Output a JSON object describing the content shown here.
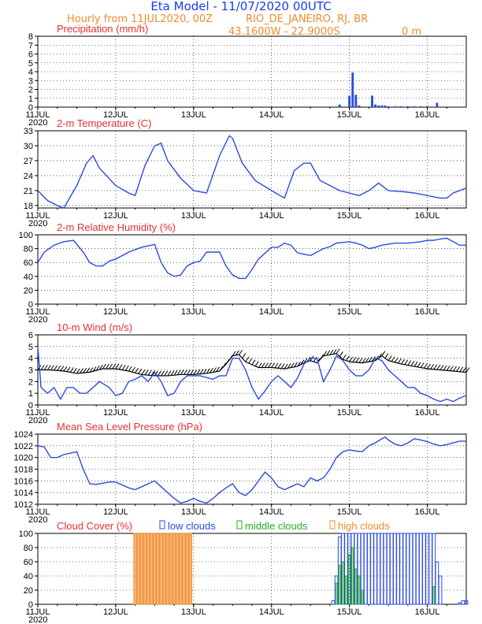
{
  "header": {
    "title": "Eta Model - 11/07/2020 00UTC",
    "subtitle": "Hourly from 11JUL2020, 00Z",
    "location": "RIO_DE_JANEIRO, RJ, BR",
    "coords": "43.1600W - 22.9000S",
    "elevation": "0 m",
    "title_color": "#1a3cf0",
    "subtitle_color": "#f08c28"
  },
  "x_axis": {
    "hours_total": 132,
    "tick_labels": [
      "11JUL",
      "12JUL",
      "13JUL",
      "14JUL",
      "15JUL",
      "16JUL"
    ],
    "year_label": "2020"
  },
  "chart_data": [
    {
      "type": "bar",
      "panel": "precip",
      "title": "Precipitation (mm/h)",
      "ylim": [
        0,
        8
      ],
      "yticks": [
        0,
        1,
        2,
        3,
        4,
        5,
        6,
        7,
        8
      ],
      "bars": [
        [
          93,
          0.3
        ],
        [
          96,
          1.3
        ],
        [
          97,
          3.9
        ],
        [
          98,
          1.4
        ],
        [
          99,
          0.2
        ],
        [
          103,
          1.3
        ],
        [
          104,
          0.3
        ],
        [
          105,
          0.2
        ],
        [
          106,
          0.2
        ],
        [
          107,
          0.2
        ],
        [
          108,
          0.1
        ],
        [
          110,
          0.1
        ],
        [
          112,
          0.1
        ],
        [
          114,
          0.1
        ],
        [
          116,
          0.1
        ],
        [
          118,
          0.1
        ],
        [
          120,
          0.1
        ],
        [
          123,
          0.5
        ]
      ]
    },
    {
      "type": "line",
      "panel": "temp",
      "title": "2-m Temperature (C)",
      "ylim": [
        17.5,
        33
      ],
      "yticks": [
        18,
        21,
        24,
        27,
        30,
        33
      ],
      "points": [
        [
          0,
          21
        ],
        [
          3,
          19
        ],
        [
          6,
          18
        ],
        [
          8,
          17.5
        ],
        [
          12,
          22
        ],
        [
          15,
          26.5
        ],
        [
          17,
          28
        ],
        [
          19,
          25.5
        ],
        [
          24,
          22
        ],
        [
          28,
          20.5
        ],
        [
          30,
          20
        ],
        [
          33,
          26
        ],
        [
          36,
          30
        ],
        [
          38,
          30.5
        ],
        [
          40,
          27
        ],
        [
          44,
          23.5
        ],
        [
          48,
          21
        ],
        [
          52,
          20.5
        ],
        [
          56,
          28
        ],
        [
          59,
          32
        ],
        [
          60,
          31.5
        ],
        [
          63,
          26.5
        ],
        [
          67,
          23
        ],
        [
          72,
          21
        ],
        [
          76,
          19.5
        ],
        [
          79,
          25
        ],
        [
          82,
          26.5
        ],
        [
          84,
          26.5
        ],
        [
          87,
          23
        ],
        [
          90,
          22
        ],
        [
          93,
          21
        ],
        [
          96,
          20.5
        ],
        [
          99,
          20
        ],
        [
          102,
          21
        ],
        [
          105,
          22.5
        ],
        [
          108,
          21
        ],
        [
          112,
          20.8
        ],
        [
          116,
          20.5
        ],
        [
          120,
          20
        ],
        [
          124,
          19.5
        ],
        [
          126,
          19.5
        ],
        [
          128,
          20.5
        ],
        [
          132,
          21.5
        ]
      ]
    },
    {
      "type": "line",
      "panel": "rh",
      "title": "2-m Relative Humidity (%)",
      "ylim": [
        0,
        100
      ],
      "yticks": [
        0,
        20,
        40,
        60,
        80,
        100
      ],
      "points": [
        [
          0,
          60
        ],
        [
          2,
          75
        ],
        [
          5,
          85
        ],
        [
          8,
          90
        ],
        [
          11,
          92
        ],
        [
          14,
          75
        ],
        [
          16,
          60
        ],
        [
          18,
          55
        ],
        [
          20,
          55
        ],
        [
          22,
          62
        ],
        [
          24,
          65
        ],
        [
          28,
          75
        ],
        [
          32,
          82
        ],
        [
          36,
          86
        ],
        [
          38,
          60
        ],
        [
          40,
          45
        ],
        [
          42,
          40
        ],
        [
          44,
          42
        ],
        [
          46,
          55
        ],
        [
          48,
          60
        ],
        [
          50,
          62
        ],
        [
          52,
          75
        ],
        [
          56,
          75
        ],
        [
          58,
          55
        ],
        [
          60,
          42
        ],
        [
          62,
          37
        ],
        [
          64,
          37
        ],
        [
          66,
          50
        ],
        [
          68,
          65
        ],
        [
          72,
          82
        ],
        [
          74,
          82
        ],
        [
          76,
          88
        ],
        [
          78,
          85
        ],
        [
          80,
          74
        ],
        [
          82,
          72
        ],
        [
          84,
          70
        ],
        [
          86,
          75
        ],
        [
          88,
          80
        ],
        [
          90,
          83
        ],
        [
          92,
          88
        ],
        [
          96,
          90
        ],
        [
          98,
          88
        ],
        [
          100,
          85
        ],
        [
          102,
          80
        ],
        [
          104,
          82
        ],
        [
          106,
          85
        ],
        [
          110,
          88
        ],
        [
          114,
          88
        ],
        [
          118,
          90
        ],
        [
          120,
          92
        ],
        [
          122,
          92
        ],
        [
          124,
          94
        ],
        [
          126,
          95
        ],
        [
          128,
          90
        ],
        [
          130,
          85
        ],
        [
          132,
          85
        ]
      ]
    },
    {
      "type": "line",
      "panel": "wind",
      "title": "10-m Wind (m/s)",
      "ylim": [
        0,
        6
      ],
      "yticks": [
        0,
        1,
        2,
        3,
        4,
        5,
        6
      ],
      "points": [
        [
          0,
          5
        ],
        [
          1,
          1.5
        ],
        [
          3,
          1
        ],
        [
          5,
          1.5
        ],
        [
          7,
          0.5
        ],
        [
          9,
          1.5
        ],
        [
          11,
          1.5
        ],
        [
          13,
          1
        ],
        [
          15,
          1
        ],
        [
          17,
          1.5
        ],
        [
          19,
          2
        ],
        [
          22,
          1.5
        ],
        [
          24,
          0.8
        ],
        [
          26,
          1
        ],
        [
          28,
          2
        ],
        [
          30,
          2.2
        ],
        [
          32,
          2.5
        ],
        [
          34,
          2
        ],
        [
          36,
          2.8
        ],
        [
          38,
          2
        ],
        [
          40,
          0.8
        ],
        [
          42,
          1
        ],
        [
          44,
          2
        ],
        [
          46,
          2.5
        ],
        [
          50,
          2.5
        ],
        [
          54,
          2.2
        ],
        [
          56,
          2.5
        ],
        [
          58,
          2.5
        ],
        [
          60,
          4
        ],
        [
          62,
          4
        ],
        [
          64,
          3
        ],
        [
          66,
          1.5
        ],
        [
          68,
          0.5
        ],
        [
          70,
          1.2
        ],
        [
          72,
          2
        ],
        [
          74,
          2.5
        ],
        [
          76,
          2
        ],
        [
          78,
          1.5
        ],
        [
          80,
          2.3
        ],
        [
          82,
          3.5
        ],
        [
          84,
          4
        ],
        [
          86,
          4
        ],
        [
          88,
          2
        ],
        [
          90,
          3
        ],
        [
          92,
          4.2
        ],
        [
          94,
          3.8
        ],
        [
          96,
          3
        ],
        [
          98,
          2.5
        ],
        [
          100,
          2.5
        ],
        [
          102,
          3
        ],
        [
          104,
          4
        ],
        [
          106,
          3.8
        ],
        [
          108,
          3
        ],
        [
          110,
          2.5
        ],
        [
          112,
          2
        ],
        [
          114,
          1.5
        ],
        [
          116,
          1.5
        ],
        [
          118,
          1
        ],
        [
          120,
          0.8
        ],
        [
          122,
          0.5
        ],
        [
          124,
          0.3
        ],
        [
          126,
          0.5
        ],
        [
          128,
          0.3
        ],
        [
          130,
          0.6
        ],
        [
          132,
          0.8
        ]
      ],
      "barbs": [
        [
          0,
          3
        ],
        [
          4,
          3
        ],
        [
          8,
          2.9
        ],
        [
          12,
          2.7
        ],
        [
          16,
          2.8
        ],
        [
          20,
          3.1
        ],
        [
          24,
          3.1
        ],
        [
          28,
          2.9
        ],
        [
          32,
          2.6
        ],
        [
          36,
          2.5
        ],
        [
          40,
          2.5
        ],
        [
          44,
          2.6
        ],
        [
          48,
          2.6
        ],
        [
          52,
          2.7
        ],
        [
          56,
          2.9
        ],
        [
          58,
          3.5
        ],
        [
          60,
          4.2
        ],
        [
          62,
          4.3
        ],
        [
          64,
          3.7
        ],
        [
          68,
          3.2
        ],
        [
          72,
          3.2
        ],
        [
          76,
          3.1
        ],
        [
          80,
          3.3
        ],
        [
          82,
          3.6
        ],
        [
          84,
          3.8
        ],
        [
          86,
          3.6
        ],
        [
          88,
          4.2
        ],
        [
          90,
          4.3
        ],
        [
          92,
          4.4
        ],
        [
          94,
          3.9
        ],
        [
          96,
          3.7
        ],
        [
          100,
          3.6
        ],
        [
          104,
          3.8
        ],
        [
          106,
          4.2
        ],
        [
          108,
          3.8
        ],
        [
          112,
          3.5
        ],
        [
          116,
          3.3
        ],
        [
          120,
          3.1
        ],
        [
          124,
          3
        ],
        [
          128,
          2.9
        ],
        [
          132,
          2.8
        ]
      ]
    },
    {
      "type": "line",
      "panel": "mslp",
      "title": "Mean Sea Level Pressure (hPa)",
      "ylim": [
        1012,
        1024
      ],
      "yticks": [
        1012,
        1014,
        1016,
        1018,
        1020,
        1022,
        1024
      ],
      "points": [
        [
          0,
          1022
        ],
        [
          2,
          1021.8
        ],
        [
          4,
          1020
        ],
        [
          6,
          1020
        ],
        [
          8,
          1020.5
        ],
        [
          12,
          1021
        ],
        [
          14,
          1018
        ],
        [
          16,
          1015.5
        ],
        [
          18,
          1015.4
        ],
        [
          20,
          1015.6
        ],
        [
          22,
          1015.8
        ],
        [
          24,
          1015.8
        ],
        [
          28,
          1014.8
        ],
        [
          30,
          1014.5
        ],
        [
          32,
          1015
        ],
        [
          36,
          1016
        ],
        [
          38,
          1015
        ],
        [
          40,
          1014
        ],
        [
          42,
          1013
        ],
        [
          44,
          1012.2
        ],
        [
          46,
          1012.5
        ],
        [
          48,
          1013
        ],
        [
          50,
          1012.5
        ],
        [
          52,
          1012.2
        ],
        [
          54,
          1013
        ],
        [
          56,
          1014
        ],
        [
          58,
          1014.8
        ],
        [
          60,
          1015.5
        ],
        [
          62,
          1014
        ],
        [
          64,
          1013.5
        ],
        [
          66,
          1014.5
        ],
        [
          68,
          1016
        ],
        [
          70,
          1017.5
        ],
        [
          72,
          1016.5
        ],
        [
          74,
          1015
        ],
        [
          76,
          1014.5
        ],
        [
          78,
          1015
        ],
        [
          80,
          1015.5
        ],
        [
          82,
          1015
        ],
        [
          84,
          1016.5
        ],
        [
          86,
          1016
        ],
        [
          88,
          1016.5
        ],
        [
          90,
          1018
        ],
        [
          92,
          1020
        ],
        [
          94,
          1021
        ],
        [
          96,
          1021.3
        ],
        [
          98,
          1021.1
        ],
        [
          100,
          1021
        ],
        [
          102,
          1022
        ],
        [
          104,
          1022.5
        ],
        [
          106,
          1023.2
        ],
        [
          107,
          1023.5
        ],
        [
          108,
          1023
        ],
        [
          110,
          1022.3
        ],
        [
          112,
          1022
        ],
        [
          114,
          1022.5
        ],
        [
          116,
          1023.2
        ],
        [
          118,
          1023
        ],
        [
          120,
          1022.7
        ],
        [
          122,
          1022.3
        ],
        [
          124,
          1022
        ],
        [
          126,
          1022.2
        ],
        [
          128,
          1022.5
        ],
        [
          130,
          1022.8
        ],
        [
          132,
          1022.8
        ]
      ]
    },
    {
      "type": "bar",
      "panel": "cloud",
      "title": "Cloud Cover (%)",
      "legend": [
        "low clouds",
        "middle clouds",
        "high clouds"
      ],
      "ylim": [
        0,
        100
      ],
      "yticks": [
        0,
        20,
        40,
        60,
        80,
        100
      ],
      "high": [
        [
          30,
          100
        ],
        [
          31,
          100
        ],
        [
          32,
          100
        ],
        [
          33,
          100
        ],
        [
          34,
          100
        ],
        [
          35,
          100
        ],
        [
          36,
          100
        ],
        [
          37,
          100
        ],
        [
          38,
          100
        ],
        [
          39,
          100
        ],
        [
          40,
          100
        ],
        [
          41,
          100
        ],
        [
          42,
          100
        ],
        [
          43,
          100
        ],
        [
          44,
          100
        ],
        [
          45,
          100
        ],
        [
          46,
          100
        ],
        [
          47,
          100
        ]
      ],
      "low": [
        [
          91,
          5
        ],
        [
          92,
          40
        ],
        [
          93,
          95
        ],
        [
          94,
          100
        ],
        [
          95,
          100
        ],
        [
          96,
          100
        ],
        [
          97,
          100
        ],
        [
          98,
          100
        ],
        [
          99,
          100
        ],
        [
          100,
          100
        ],
        [
          101,
          100
        ],
        [
          102,
          100
        ],
        [
          103,
          100
        ],
        [
          104,
          100
        ],
        [
          105,
          100
        ],
        [
          106,
          100
        ],
        [
          107,
          100
        ],
        [
          108,
          100
        ],
        [
          109,
          100
        ],
        [
          110,
          100
        ],
        [
          111,
          100
        ],
        [
          112,
          100
        ],
        [
          113,
          100
        ],
        [
          114,
          100
        ],
        [
          115,
          100
        ],
        [
          116,
          100
        ],
        [
          117,
          100
        ],
        [
          118,
          100
        ],
        [
          119,
          100
        ],
        [
          120,
          100
        ],
        [
          121,
          100
        ],
        [
          122,
          100
        ],
        [
          123,
          60
        ],
        [
          124,
          40
        ],
        [
          130,
          2
        ],
        [
          131,
          5
        ],
        [
          132,
          5
        ]
      ],
      "middle": [
        [
          92,
          30
        ],
        [
          93,
          55
        ],
        [
          94,
          60
        ],
        [
          95,
          40
        ],
        [
          96,
          70
        ],
        [
          97,
          80
        ],
        [
          98,
          50
        ],
        [
          99,
          40
        ],
        [
          100,
          20
        ],
        [
          122,
          25
        ]
      ]
    }
  ]
}
